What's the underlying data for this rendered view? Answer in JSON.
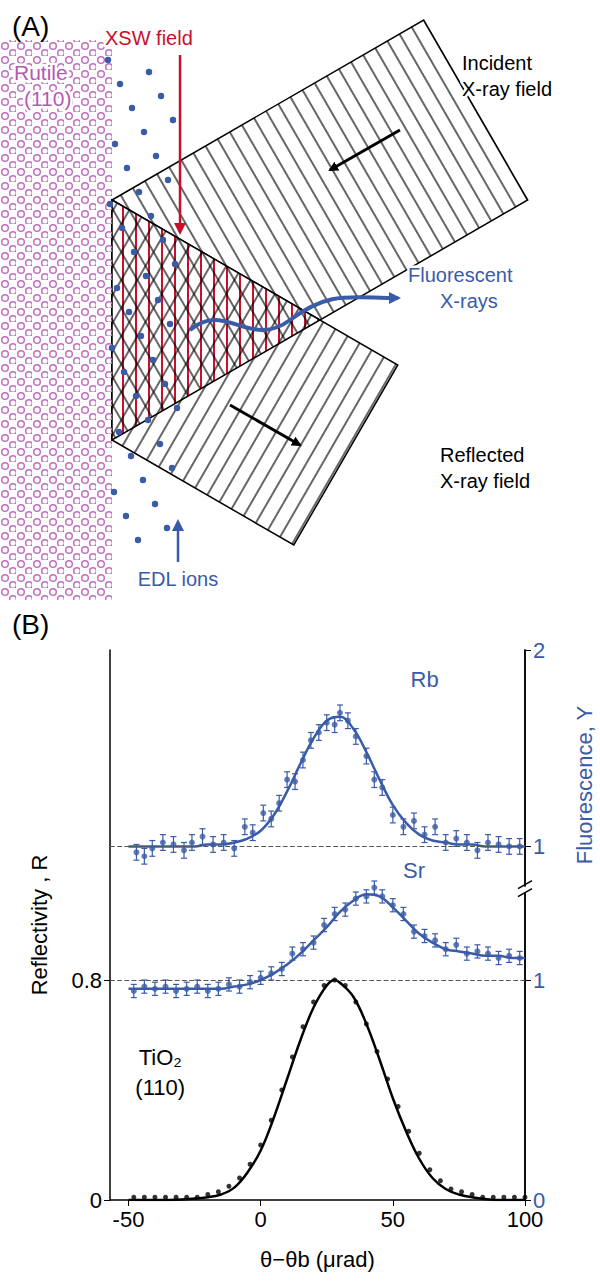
{
  "diagram": {
    "letter": "(A)",
    "labels": {
      "xsw": "XSW field",
      "rutile": "Rutile",
      "rutile_face": "(110)",
      "incident": [
        "Incident",
        "X-ray field"
      ],
      "fluorescent": [
        "Fluorescent",
        "X-rays"
      ],
      "reflected": [
        "Reflected",
        "X-ray field"
      ],
      "ions": "EDL ions"
    }
  },
  "chart_data": {
    "type": "scatter",
    "letter": "(B)",
    "x_label": "θ−θb (μrad)",
    "y_label": "Reflectivity , R",
    "y2_label": "Fluorescence, Y",
    "xlim": [
      -57,
      100
    ],
    "xticks": [
      -50,
      0,
      50,
      100
    ],
    "ylim": [
      0,
      2
    ],
    "yticks": [
      0,
      0.8
    ],
    "y2lim": [
      0,
      2.5
    ],
    "y2ticks": [
      0,
      1
    ],
    "y3lim": [
      -0.8,
      2
    ],
    "y3ticks": [
      1,
      2
    ],
    "grid": false,
    "series": [
      {
        "label": [
          "Rb"
        ],
        "axis": "y3",
        "color": "#3a5ba8",
        "marker": "circle",
        "line_style": "solid",
        "baseline": 1,
        "x": [
          -47,
          -44,
          -41,
          -37,
          -33,
          -29,
          -26,
          -22,
          -18,
          -14,
          -10,
          -6,
          -3,
          1,
          4,
          7,
          10,
          13,
          16,
          19,
          22,
          25,
          28,
          30,
          33,
          36,
          40,
          43,
          46,
          50,
          54,
          58,
          62,
          66,
          70,
          74,
          78,
          82,
          86,
          90,
          94,
          98
        ],
        "values": [
          0.97,
          0.95,
          0.99,
          1.02,
          1.01,
          0.98,
          1.02,
          1.05,
          1.01,
          1.02,
          0.99,
          1.1,
          1.07,
          1.17,
          1.14,
          1.22,
          1.34,
          1.33,
          1.44,
          1.54,
          1.58,
          1.63,
          1.62,
          1.68,
          1.64,
          1.56,
          1.46,
          1.34,
          1.3,
          1.16,
          1.1,
          1.13,
          1.06,
          1.1,
          1.02,
          1.04,
          1.02,
          0.98,
          1.02,
          1.01,
          1.0,
          1.0
        ],
        "errors": [
          0.04,
          0.04,
          0.04,
          0.04,
          0.04,
          0.04,
          0.04,
          0.04,
          0.04,
          0.04,
          0.04,
          0.04,
          0.04,
          0.04,
          0.04,
          0.04,
          0.04,
          0.04,
          0.04,
          0.04,
          0.04,
          0.04,
          0.04,
          0.04,
          0.04,
          0.04,
          0.04,
          0.04,
          0.04,
          0.04,
          0.04,
          0.04,
          0.04,
          0.04,
          0.04,
          0.04,
          0.04,
          0.04,
          0.04,
          0.04,
          0.04,
          0.04
        ],
        "fit_x": [
          -50,
          -45,
          -40,
          -35,
          -30,
          -25,
          -20,
          -15,
          -10,
          -5,
          0,
          5,
          10,
          15,
          20,
          25,
          30,
          35,
          40,
          45,
          50,
          55,
          60,
          65,
          70,
          75,
          80,
          85,
          90,
          95,
          100
        ],
        "fit": [
          1.0,
          1.0,
          1.0,
          1.0,
          1.0,
          1.0,
          1.01,
          1.01,
          1.02,
          1.04,
          1.08,
          1.16,
          1.28,
          1.42,
          1.55,
          1.64,
          1.66,
          1.6,
          1.48,
          1.34,
          1.21,
          1.12,
          1.06,
          1.03,
          1.02,
          1.01,
          1.01,
          1.0,
          1.0,
          1.0,
          1.0
        ]
      },
      {
        "label": [
          "Sr"
        ],
        "axis": "y2",
        "color": "#3a5ba8",
        "marker": "circle",
        "line_style": "solid",
        "baseline": 1,
        "x": [
          -48,
          -44,
          -40,
          -36,
          -32,
          -28,
          -24,
          -20,
          -16,
          -12,
          -8,
          -4,
          0,
          4,
          8,
          12,
          16,
          20,
          24,
          28,
          32,
          36,
          40,
          43,
          46,
          50,
          54,
          58,
          62,
          66,
          70,
          74,
          78,
          82,
          86,
          90,
          94,
          98
        ],
        "values": [
          0.95,
          0.97,
          0.96,
          0.97,
          0.95,
          0.96,
          0.97,
          0.95,
          0.96,
          0.98,
          0.97,
          0.99,
          1.01,
          1.03,
          1.05,
          1.12,
          1.14,
          1.17,
          1.25,
          1.3,
          1.32,
          1.37,
          1.38,
          1.42,
          1.38,
          1.34,
          1.3,
          1.22,
          1.2,
          1.18,
          1.14,
          1.16,
          1.12,
          1.13,
          1.12,
          1.1,
          1.11,
          1.1
        ],
        "errors": [
          0.03,
          0.03,
          0.03,
          0.03,
          0.03,
          0.03,
          0.03,
          0.03,
          0.03,
          0.03,
          0.03,
          0.03,
          0.03,
          0.03,
          0.03,
          0.03,
          0.03,
          0.03,
          0.03,
          0.03,
          0.03,
          0.03,
          0.03,
          0.03,
          0.03,
          0.03,
          0.03,
          0.03,
          0.03,
          0.03,
          0.03,
          0.03,
          0.03,
          0.03,
          0.03,
          0.03,
          0.03,
          0.03
        ],
        "fit_x": [
          -50,
          -45,
          -40,
          -35,
          -30,
          -25,
          -20,
          -15,
          -10,
          -5,
          0,
          5,
          10,
          15,
          20,
          25,
          30,
          35,
          40,
          45,
          50,
          55,
          60,
          65,
          70,
          75,
          80,
          85,
          90,
          95,
          100
        ],
        "fit": [
          0.96,
          0.96,
          0.96,
          0.96,
          0.96,
          0.96,
          0.96,
          0.96,
          0.97,
          0.98,
          1.0,
          1.03,
          1.07,
          1.12,
          1.18,
          1.24,
          1.31,
          1.36,
          1.39,
          1.38,
          1.33,
          1.27,
          1.21,
          1.17,
          1.14,
          1.13,
          1.12,
          1.11,
          1.11,
          1.1,
          1.1
        ]
      },
      {
        "label": [
          "TiO₂",
          "(110)"
        ],
        "axis": "y",
        "color": "#000000",
        "marker": "circle",
        "line_style": "solid",
        "x": [
          -48,
          -44,
          -40,
          -36,
          -32,
          -28,
          -24,
          -20,
          -16,
          -12,
          -8,
          -4,
          0,
          4,
          8,
          12,
          16,
          20,
          24,
          28,
          32,
          36,
          40,
          44,
          48,
          52,
          56,
          60,
          64,
          68,
          72,
          76,
          80,
          84,
          88,
          92,
          96,
          100
        ],
        "values": [
          0.01,
          0.01,
          0.01,
          0.01,
          0.01,
          0.01,
          0.01,
          0.02,
          0.03,
          0.05,
          0.08,
          0.13,
          0.2,
          0.29,
          0.4,
          0.52,
          0.63,
          0.72,
          0.78,
          0.8,
          0.78,
          0.72,
          0.64,
          0.54,
          0.44,
          0.34,
          0.25,
          0.17,
          0.11,
          0.07,
          0.04,
          0.03,
          0.02,
          0.01,
          0.01,
          0.01,
          0.01,
          0.01
        ],
        "fit_x": [
          -50,
          -40,
          -30,
          -20,
          -15,
          -10,
          -5,
          0,
          5,
          10,
          15,
          20,
          25,
          28,
          30,
          35,
          40,
          45,
          50,
          55,
          60,
          65,
          70,
          75,
          80,
          90,
          100
        ],
        "fit": [
          0,
          0,
          0.002,
          0.01,
          0.02,
          0.045,
          0.1,
          0.18,
          0.3,
          0.44,
          0.58,
          0.7,
          0.78,
          0.8,
          0.79,
          0.74,
          0.64,
          0.51,
          0.37,
          0.25,
          0.15,
          0.08,
          0.04,
          0.02,
          0.01,
          0,
          0
        ]
      }
    ]
  }
}
